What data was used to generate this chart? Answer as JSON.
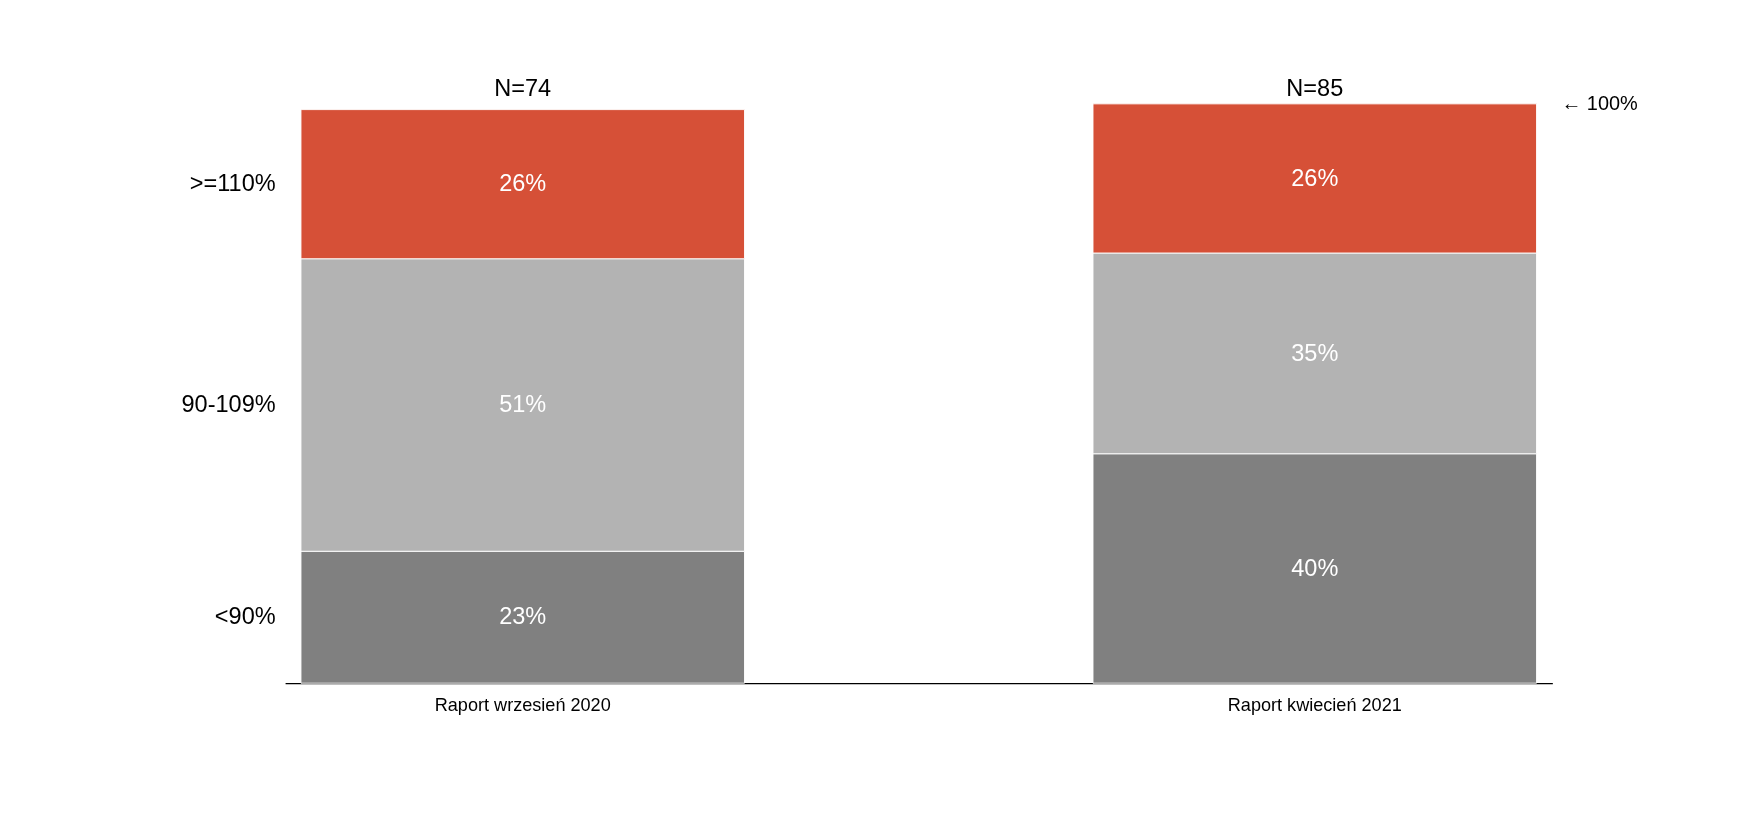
{
  "chart_data": {
    "type": "bar",
    "stacked": true,
    "categories": [
      "Raport wrzesień 2020",
      "Raport kwiecień 2021"
    ],
    "series": [
      {
        "name": "<90%",
        "color": "#808080",
        "values": [
          23,
          40
        ],
        "value_labels": [
          "23%",
          "40%"
        ]
      },
      {
        "name": "90-109%",
        "color": "#b3b3b3",
        "values": [
          51,
          35
        ],
        "value_labels": [
          "51%",
          "35%"
        ]
      },
      {
        "name": ">=110%",
        "color": "#d65037",
        "values": [
          26,
          26
        ],
        "value_labels": [
          "26%",
          "26%"
        ]
      }
    ],
    "ylim": [
      0,
      101
    ],
    "tick_labels": "x",
    "grid": false,
    "legend": false,
    "annotations": [
      "N=74",
      "N=85",
      "← 100%"
    ]
  }
}
